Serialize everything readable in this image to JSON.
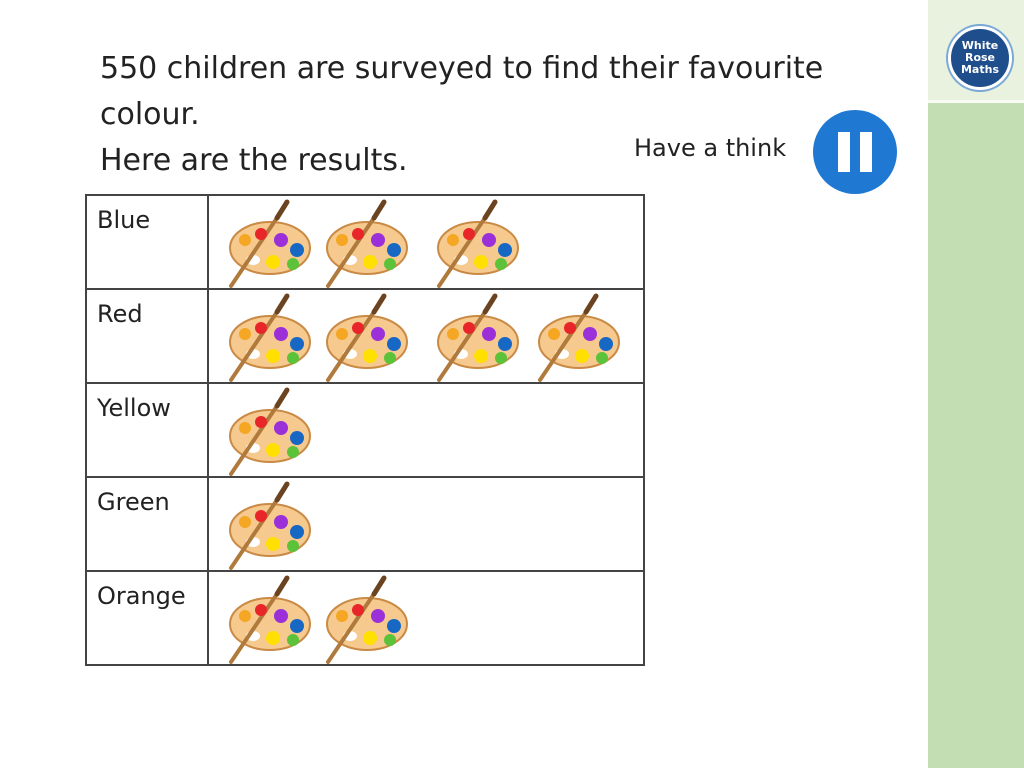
{
  "question": {
    "line1": "550 children are surveyed to find their favourite",
    "line2": "colour.",
    "line3": "Here are the results."
  },
  "hint": {
    "label": "Have a think",
    "icon": "pause-icon"
  },
  "logo": {
    "line1": "White",
    "line2": "Rose",
    "line3": "Maths"
  },
  "colors": {
    "sidebar": "#c4deb3",
    "pause_button": "#1f78d1"
  },
  "chart_data": {
    "type": "table",
    "icon": "paint-palette-icon",
    "categories": [
      "Blue",
      "Red",
      "Yellow",
      "Green",
      "Orange"
    ],
    "values": [
      3,
      4,
      1,
      1,
      2
    ]
  }
}
